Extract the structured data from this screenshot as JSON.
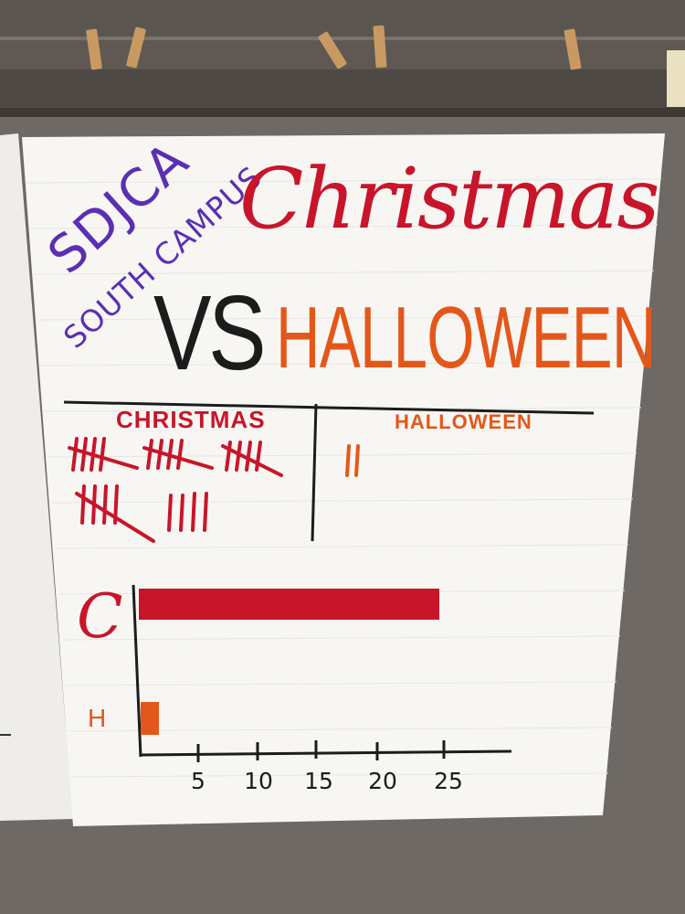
{
  "poster": {
    "school_line1": "SDJCA",
    "school_line2": "SOUTH CAMPUS",
    "title_christmas": "Christmas",
    "title_vs": "VS",
    "title_halloween": "HALLOWEEN"
  },
  "tally_chart": {
    "christmas_header": "CHRISTMAS",
    "halloween_header": "HALLOWEEN",
    "christmas_tally_count": 24,
    "halloween_tally_count": 2
  },
  "chart_data": {
    "type": "bar",
    "orientation": "horizontal",
    "categories": [
      "C",
      "H"
    ],
    "values": [
      24,
      2
    ],
    "colors": [
      "#c8152a",
      "#e4571a"
    ],
    "xticks": [
      "5",
      "10",
      "15",
      "20",
      "25"
    ],
    "xlim": [
      0,
      25
    ]
  },
  "colors": {
    "purple": "#5a2fb3",
    "red": "#c8152a",
    "orange": "#e4571a",
    "black": "#1c1c1c"
  }
}
